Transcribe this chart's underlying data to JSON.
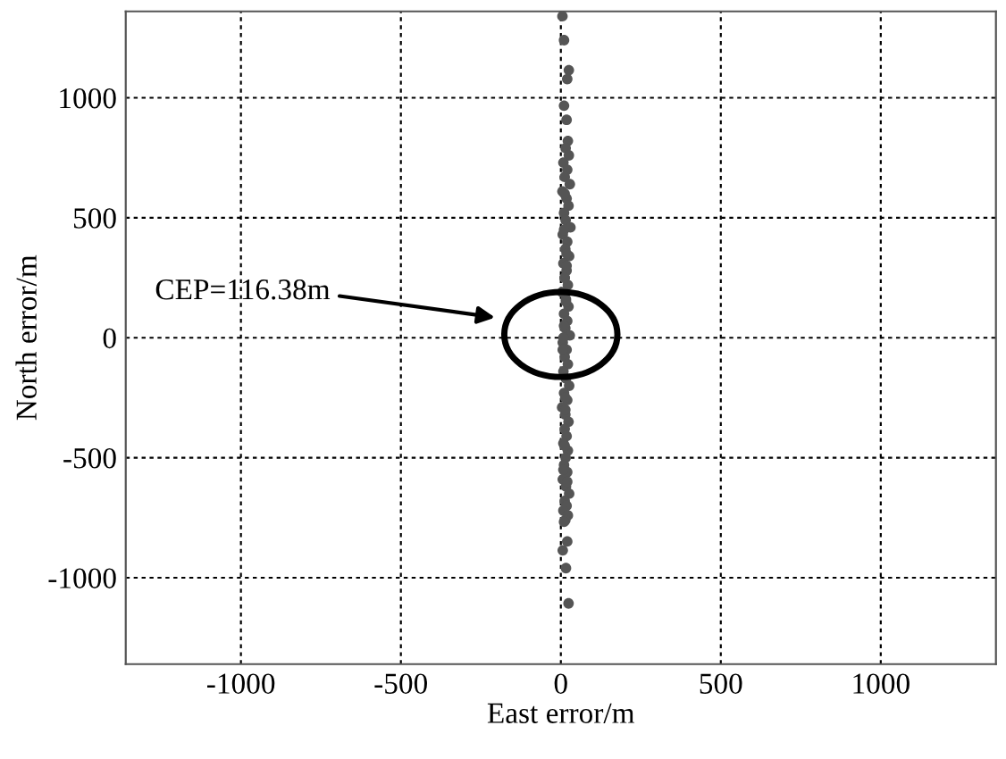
{
  "chart_data": {
    "type": "scatter",
    "xlabel": "East error/m",
    "ylabel": "North error/m",
    "xlim": [
      -1360,
      1360
    ],
    "ylim": [
      -1360,
      1360
    ],
    "xticks": [
      -1000,
      -500,
      0,
      500,
      1000
    ],
    "yticks": [
      -1000,
      -500,
      0,
      500,
      1000
    ],
    "grid": true,
    "marker": "circle",
    "series": [
      {
        "type": "scatter",
        "color": "#555555",
        "x": [
          5,
          10,
          25,
          20,
          10,
          18,
          22,
          15,
          25,
          8,
          20,
          12,
          28,
          5,
          18,
          24,
          10,
          15,
          30,
          6,
          20,
          14,
          26,
          8,
          18,
          12,
          22,
          4,
          16,
          24,
          10,
          20,
          14,
          28,
          6,
          18,
          12,
          22,
          8,
          16,
          26,
          10,
          20,
          4,
          14,
          24,
          12,
          18,
          8,
          22,
          15,
          10,
          20,
          6,
          16,
          26,
          12,
          18,
          8,
          22,
          14,
          10,
          20,
          6,
          16,
          24,
          12,
          18,
          8,
          14,
          20,
          10,
          16,
          12,
          18,
          10,
          14,
          8,
          12,
          6
        ],
        "values": [
          1340,
          1240,
          1115,
          1078,
          967,
          908,
          820,
          790,
          760,
          730,
          700,
          670,
          640,
          610,
          580,
          550,
          520,
          490,
          460,
          430,
          400,
          370,
          340,
          310,
          280,
          250,
          220,
          190,
          160,
          130,
          100,
          70,
          40,
          10,
          -20,
          -50,
          -80,
          -110,
          -140,
          -170,
          -200,
          -230,
          -260,
          -290,
          -320,
          -350,
          -380,
          -410,
          -440,
          -470,
          -500,
          -530,
          -560,
          -590,
          -620,
          -650,
          -680,
          -700,
          -720,
          -740,
          -760,
          -767,
          -849,
          -886,
          -960,
          -1107,
          600,
          300,
          0,
          -300,
          -600,
          450,
          150,
          -450,
          350,
          50,
          -250,
          -550,
          250,
          -50
        ]
      }
    ],
    "annotations": [
      "CEP=116.38m"
    ]
  }
}
